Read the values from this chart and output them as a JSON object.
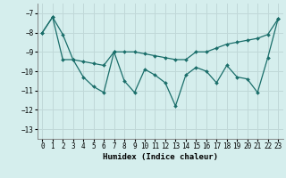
{
  "xlabel": "Humidex (Indice chaleur)",
  "background_color": "#d5eeed",
  "grid_color": "#c0d8d8",
  "line_color": "#1a6e6a",
  "xlim": [
    -0.5,
    23.5
  ],
  "ylim": [
    -13.5,
    -6.5
  ],
  "yticks": [
    -13,
    -12,
    -11,
    -10,
    -9,
    -8,
    -7
  ],
  "xticks": [
    0,
    1,
    2,
    3,
    4,
    5,
    6,
    7,
    8,
    9,
    10,
    11,
    12,
    13,
    14,
    15,
    16,
    17,
    18,
    19,
    20,
    21,
    22,
    23
  ],
  "series1_x": [
    0,
    1,
    2,
    3,
    4,
    5,
    6,
    7,
    8,
    9,
    10,
    11,
    12,
    13,
    14,
    15,
    16,
    17,
    18,
    19,
    20,
    21,
    22,
    23
  ],
  "series1_y": [
    -8.0,
    -7.2,
    -9.4,
    -9.4,
    -10.3,
    -10.8,
    -11.1,
    -9.0,
    -10.5,
    -11.1,
    -9.9,
    -10.2,
    -10.6,
    -11.8,
    -10.2,
    -9.8,
    -10.0,
    -10.6,
    -9.7,
    -10.3,
    -10.4,
    -11.1,
    -9.3,
    -7.3
  ],
  "series2_x": [
    0,
    1,
    2,
    3,
    4,
    5,
    6,
    7,
    8,
    9,
    10,
    11,
    12,
    13,
    14,
    15,
    16,
    17,
    18,
    19,
    20,
    21,
    22,
    23
  ],
  "series2_y": [
    -8.0,
    -7.2,
    -8.1,
    -9.4,
    -9.5,
    -9.6,
    -9.7,
    -9.0,
    -9.0,
    -9.0,
    -9.1,
    -9.2,
    -9.3,
    -9.4,
    -9.4,
    -9.0,
    -9.0,
    -8.8,
    -8.6,
    -8.5,
    -8.4,
    -8.3,
    -8.1,
    -7.3
  ]
}
